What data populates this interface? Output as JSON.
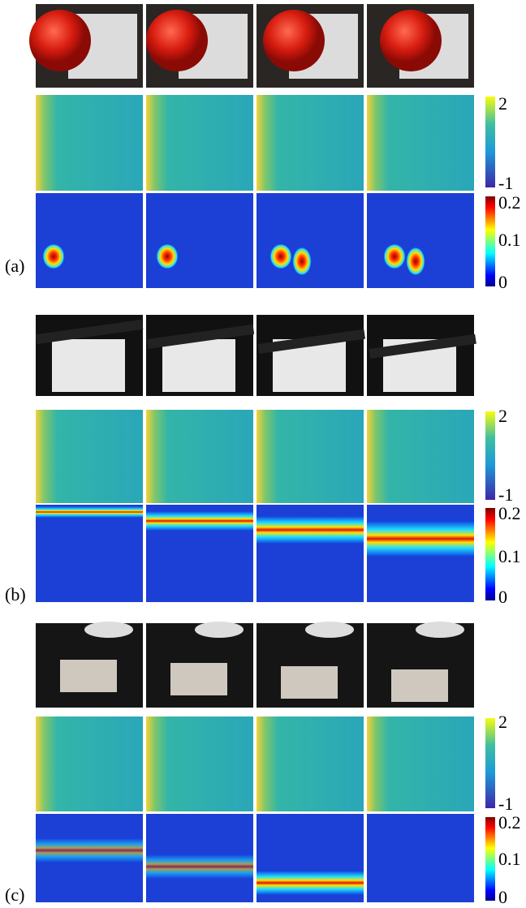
{
  "panels": [
    {
      "label": "(a)",
      "deformation_colorbar": {
        "ticks": [
          2,
          -1
        ]
      },
      "strain_colorbar": {
        "ticks": [
          0.2,
          0.1,
          0
        ]
      }
    },
    {
      "label": "(b)",
      "deformation_colorbar": {
        "ticks": [
          2,
          -1
        ]
      },
      "strain_colorbar": {
        "ticks": [
          0.2,
          0.1,
          0
        ]
      }
    },
    {
      "label": "(c)",
      "deformation_colorbar": {
        "ticks": [
          2,
          -1
        ]
      },
      "strain_colorbar": {
        "ticks": [
          0.2,
          0.1,
          0
        ]
      }
    }
  ]
}
